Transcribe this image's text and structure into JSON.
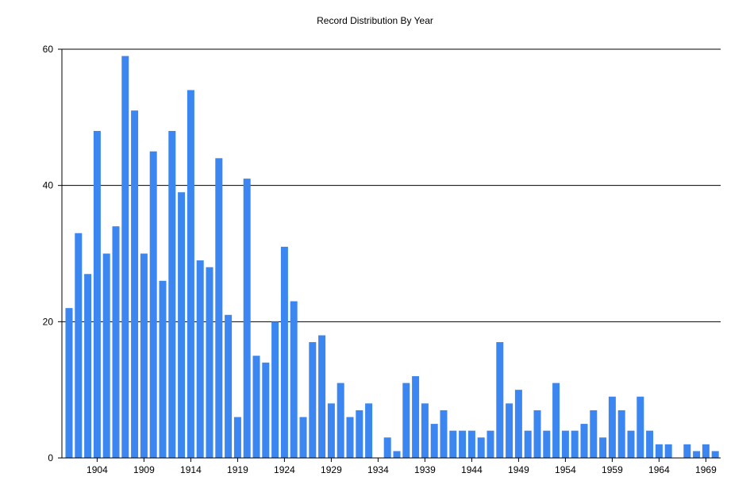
{
  "chart_data": {
    "type": "bar",
    "title": "Record Distribution By Year",
    "xlabel": "",
    "ylabel": "",
    "x": [
      1901,
      1902,
      1903,
      1904,
      1905,
      1906,
      1907,
      1908,
      1909,
      1910,
      1911,
      1912,
      1913,
      1914,
      1915,
      1916,
      1917,
      1918,
      1919,
      1920,
      1921,
      1922,
      1923,
      1924,
      1925,
      1926,
      1927,
      1928,
      1929,
      1930,
      1931,
      1932,
      1933,
      1934,
      1935,
      1936,
      1937,
      1938,
      1939,
      1940,
      1941,
      1942,
      1943,
      1944,
      1945,
      1946,
      1947,
      1948,
      1949,
      1950,
      1951,
      1952,
      1953,
      1954,
      1955,
      1956,
      1957,
      1958,
      1959,
      1960,
      1961,
      1962,
      1963,
      1964,
      1965,
      1966,
      1967,
      1968,
      1969,
      1970
    ],
    "values": [
      22,
      33,
      27,
      48,
      30,
      34,
      59,
      51,
      30,
      45,
      26,
      48,
      39,
      54,
      29,
      28,
      44,
      21,
      6,
      41,
      15,
      14,
      20,
      31,
      23,
      6,
      17,
      18,
      8,
      11,
      6,
      7,
      8,
      0,
      3,
      1,
      11,
      12,
      8,
      5,
      7,
      4,
      4,
      4,
      3,
      4,
      17,
      8,
      10,
      4,
      7,
      4,
      11,
      4,
      4,
      5,
      7,
      3,
      9,
      7,
      4,
      9,
      4,
      2,
      2,
      0,
      2,
      1,
      2,
      1
    ],
    "x_tick_labels": [
      "1904",
      "1909",
      "1914",
      "1919",
      "1924",
      "1929",
      "1934",
      "1939",
      "1944",
      "1949",
      "1954",
      "1959",
      "1964",
      "1969"
    ],
    "y_tick_labels": [
      "0",
      "20",
      "40",
      "60"
    ],
    "ylim": [
      0,
      60
    ],
    "grid": true,
    "legend": "none",
    "bar_color": "#3b86f0",
    "grid_color": "#000000"
  }
}
